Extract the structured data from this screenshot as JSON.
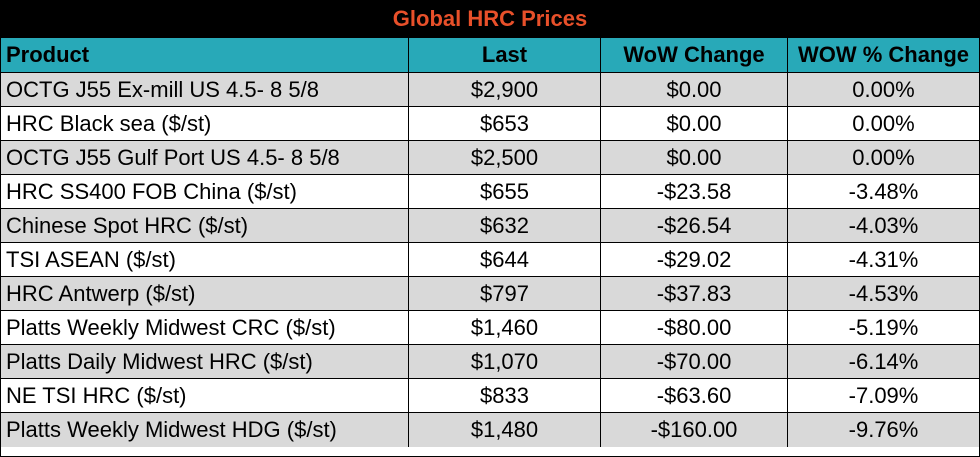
{
  "title": "Global HRC Prices",
  "colors": {
    "title_bg": "#000000",
    "title_text": "#e8502a",
    "header_bg": "#28a9b8",
    "row_shade": "#d9d9d9",
    "row_plain": "#ffffff"
  },
  "headers": [
    "Product",
    "Last",
    "WoW Change",
    "WOW % Change"
  ],
  "rows": [
    [
      "OCTG J55 Ex-mill US 4.5- 8 5/8",
      "$2,900",
      "$0.00",
      "0.00%"
    ],
    [
      "HRC Black sea ($/st)",
      "$653",
      "$0.00",
      "0.00%"
    ],
    [
      "OCTG J55 Gulf Port US 4.5- 8 5/8",
      "$2,500",
      "$0.00",
      "0.00%"
    ],
    [
      "HRC SS400 FOB China ($/st)",
      "$655",
      "-$23.58",
      "-3.48%"
    ],
    [
      "Chinese Spot HRC ($/st)",
      "$632",
      "-$26.54",
      "-4.03%"
    ],
    [
      "TSI ASEAN ($/st)",
      "$644",
      "-$29.02",
      "-4.31%"
    ],
    [
      "HRC Antwerp ($/st)",
      "$797",
      "-$37.83",
      "-4.53%"
    ],
    [
      "Platts Weekly Midwest CRC ($/st)",
      "$1,460",
      "-$80.00",
      "-5.19%"
    ],
    [
      "Platts Daily Midwest HRC ($/st)",
      "$1,070",
      "-$70.00",
      "-6.14%"
    ],
    [
      "NE TSI HRC ($/st)",
      "$833",
      "-$63.60",
      "-7.09%"
    ],
    [
      "Platts Weekly Midwest HDG ($/st)",
      "$1,480",
      "-$160.00",
      "-9.76%"
    ]
  ]
}
